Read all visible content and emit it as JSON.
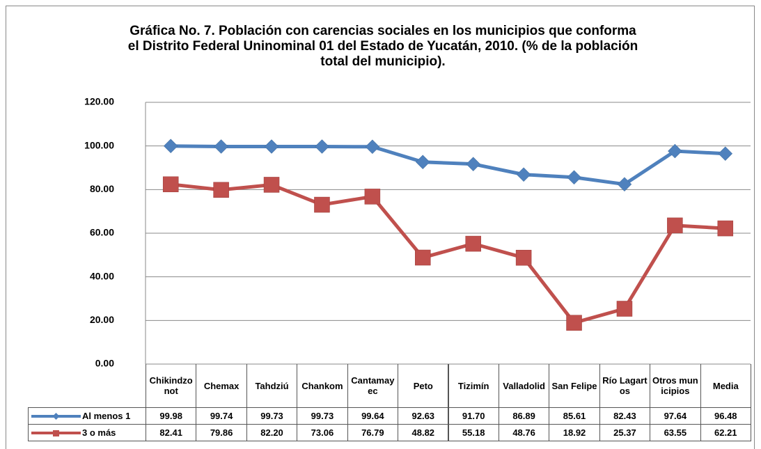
{
  "chart_data": {
    "type": "line",
    "title": "Gráfica No. 7. Población con carencias sociales en los municipios que conforma el Distrito Federal Uninominal 01 del Estado de Yucatán, 2010. (% de la población total del municipio).",
    "categories": [
      "Chikindzonot",
      "Chemax",
      "Tahdziú",
      "Chankom",
      "Cantamayec",
      "Peto",
      "Tizimín",
      "Valladolid",
      "San Felipe",
      "Río Lagartos",
      "Otros municipios",
      "Media"
    ],
    "series": [
      {
        "name": "Al menos 1",
        "color": "#4f81bd",
        "marker": "diamond",
        "values": [
          99.98,
          99.74,
          99.73,
          99.73,
          99.64,
          92.63,
          91.7,
          86.89,
          85.61,
          82.43,
          97.64,
          96.48
        ],
        "value_labels": [
          "99.98",
          "99.74",
          "99.73",
          "99.73",
          "99.64",
          "92.63",
          "91.70",
          "86.89",
          "85.61",
          "82.43",
          "97.64",
          "96.48"
        ]
      },
      {
        "name": "3 o más",
        "color": "#c0504d",
        "marker": "square",
        "values": [
          82.41,
          79.86,
          82.2,
          73.06,
          76.79,
          48.82,
          55.18,
          48.76,
          18.92,
          25.37,
          63.55,
          62.21
        ],
        "value_labels": [
          "82.41",
          "79.86",
          "82.20",
          "73.06",
          "76.79",
          "48.82",
          "55.18",
          "48.76",
          "18.92",
          "25.37",
          "63.55",
          "62.21"
        ]
      }
    ],
    "ylim": [
      0,
      120
    ],
    "yticks": [
      {
        "value": 0,
        "label": "0.00"
      },
      {
        "value": 20,
        "label": "20.00"
      },
      {
        "value": 40,
        "label": "40.00"
      },
      {
        "value": 60,
        "label": "60.00"
      },
      {
        "value": 80,
        "label": "80.00"
      },
      {
        "value": 100,
        "label": "100.00"
      },
      {
        "value": 120,
        "label": "120.00"
      }
    ],
    "grid": true,
    "data_table": true
  }
}
